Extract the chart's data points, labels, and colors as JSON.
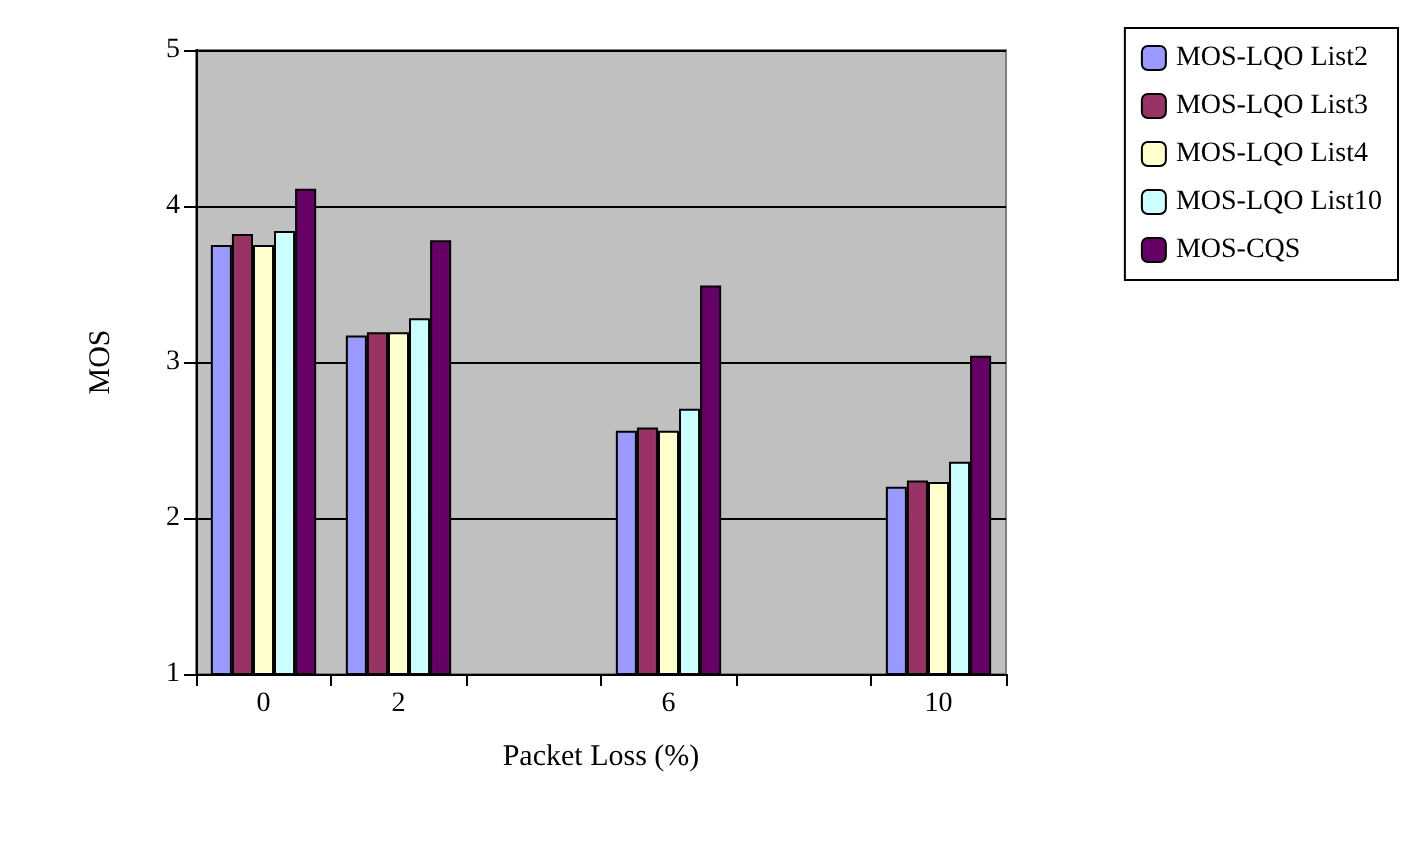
{
  "chart_data": {
    "type": "bar",
    "xlabel": "Packet Loss (%)",
    "ylabel": "MOS",
    "categories": [
      "0",
      "2",
      null,
      "6",
      null,
      "10"
    ],
    "series": [
      {
        "name": "MOS-LQO List2",
        "color": "#9999ff",
        "values": [
          3.75,
          3.17,
          null,
          2.56,
          null,
          2.2
        ]
      },
      {
        "name": "MOS-LQO List3",
        "color": "#993366",
        "values": [
          3.82,
          3.19,
          null,
          2.58,
          null,
          2.24
        ]
      },
      {
        "name": "MOS-LQO List4",
        "color": "#ffffcc",
        "values": [
          3.75,
          3.19,
          null,
          2.56,
          null,
          2.23
        ]
      },
      {
        "name": "MOS-LQO List10",
        "color": "#ccffff",
        "values": [
          3.84,
          3.28,
          null,
          2.7,
          null,
          2.36
        ]
      },
      {
        "name": "MOS-CQS",
        "color": "#660066",
        "values": [
          4.11,
          3.78,
          null,
          3.49,
          null,
          3.04
        ]
      }
    ],
    "ylim": [
      1,
      5
    ],
    "yticks": [
      1,
      2,
      3,
      4,
      5
    ],
    "grid": "y",
    "legend": "right"
  }
}
